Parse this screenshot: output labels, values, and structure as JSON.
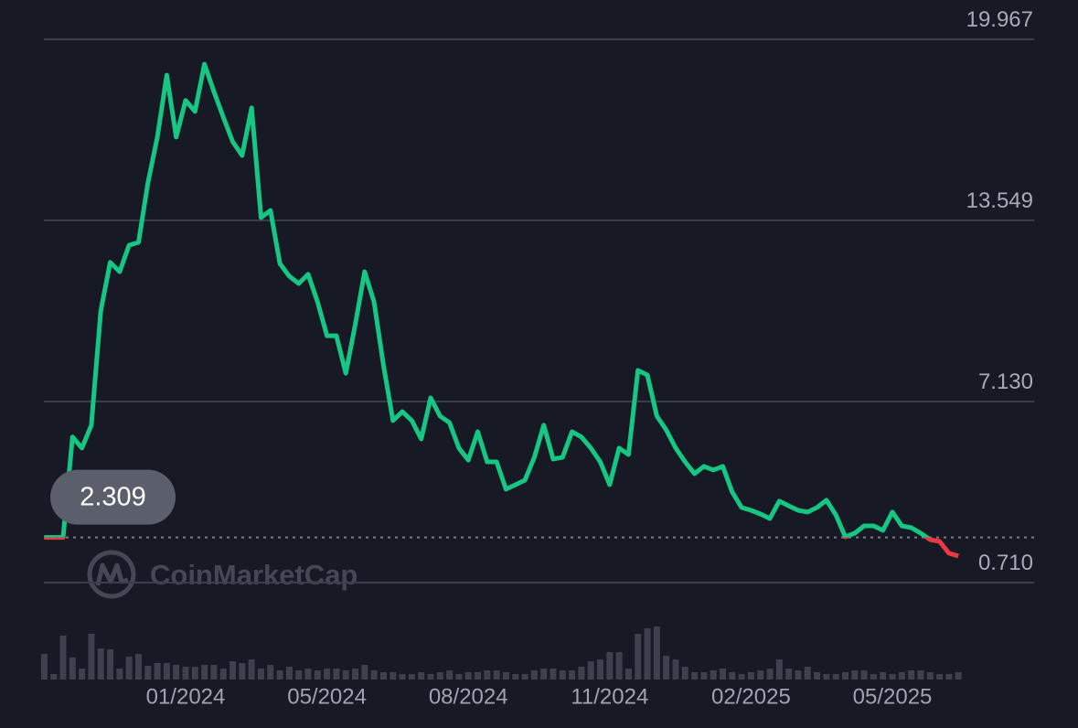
{
  "chart_data": {
    "type": "line",
    "watermark": "CoinMarketCap",
    "current_value": 2.309,
    "color": "#16c784",
    "down_color": "#ea3943",
    "volume_color": "#3d404d",
    "grid": true,
    "ylim": [
      0.71,
      19.967
    ],
    "yticks": [
      {
        "value": 0.71,
        "label": "0.710"
      },
      {
        "value": 7.13,
        "label": "7.130"
      },
      13.549,
      19.967
    ],
    "categories": [
      null,
      null,
      null,
      null,
      null,
      null,
      null,
      null,
      null,
      null,
      null,
      null,
      null,
      null,
      null,
      "01/2024",
      null,
      null,
      null,
      null,
      null,
      null,
      null,
      null,
      null,
      null,
      null,
      null,
      null,
      null,
      "05/2024",
      null,
      null,
      null,
      null,
      null,
      null,
      null,
      null,
      null,
      null,
      null,
      null,
      null,
      null,
      "08/2024",
      null,
      null,
      null,
      null,
      null,
      null,
      null,
      null,
      null,
      null,
      null,
      null,
      null,
      null,
      "11/2024",
      null,
      null,
      null,
      null,
      null,
      null,
      null,
      null,
      null,
      null,
      null,
      null,
      null,
      null,
      "02/2025",
      null,
      null,
      null,
      null,
      null,
      null,
      null,
      null,
      null,
      null,
      null,
      null,
      null,
      null,
      "05/2025",
      null,
      null,
      null,
      null,
      null,
      null,
      null
    ],
    "values": [
      2.31,
      2.31,
      2.31,
      5.87,
      5.48,
      6.29,
      10.34,
      12.06,
      11.73,
      12.67,
      12.77,
      14.88,
      16.5,
      18.7,
      16.5,
      17.8,
      17.41,
      19.09,
      18.12,
      17.21,
      16.34,
      15.85,
      17.54,
      13.65,
      13.9,
      12.02,
      11.57,
      11.31,
      11.64,
      10.66,
      9.46,
      9.46,
      8.13,
      9.85,
      11.73,
      10.66,
      8.39,
      6.45,
      6.77,
      6.45,
      5.8,
      7.26,
      6.61,
      6.38,
      5.48,
      5.05,
      6.06,
      4.99,
      4.99,
      4.02,
      4.18,
      4.34,
      5.15,
      6.29,
      5.09,
      5.15,
      6.06,
      5.87,
      5.48,
      4.99,
      4.18,
      5.48,
      5.25,
      8.23,
      8.07,
      6.61,
      6.12,
      5.48,
      4.99,
      4.57,
      4.83,
      4.7,
      4.83,
      3.92,
      3.37,
      3.27,
      3.14,
      2.98,
      3.6,
      3.43,
      3.27,
      3.21,
      3.37,
      3.63,
      3.11,
      2.33,
      2.46,
      2.72,
      2.72,
      2.56,
      3.21,
      2.72,
      2.66,
      2.46,
      2.23,
      2.17,
      1.75,
      1.65
    ],
    "volume": [
      28,
      6,
      48,
      24,
      12,
      50,
      34,
      33,
      12,
      25,
      28,
      15,
      18,
      18,
      16,
      14,
      14,
      16,
      16,
      12,
      20,
      18,
      22,
      12,
      16,
      10,
      14,
      10,
      12,
      10,
      12,
      12,
      10,
      12,
      16,
      10,
      8,
      8,
      6,
      6,
      8,
      6,
      8,
      10,
      6,
      8,
      8,
      10,
      10,
      8,
      6,
      6,
      10,
      12,
      12,
      10,
      10,
      14,
      20,
      22,
      30,
      30,
      12,
      50,
      56,
      58,
      26,
      22,
      14,
      8,
      8,
      10,
      12,
      8,
      6,
      8,
      10,
      12,
      22,
      12,
      10,
      14,
      8,
      6,
      6,
      8,
      10,
      10,
      6,
      8,
      6,
      8,
      10,
      10,
      8,
      6,
      6,
      8
    ]
  }
}
